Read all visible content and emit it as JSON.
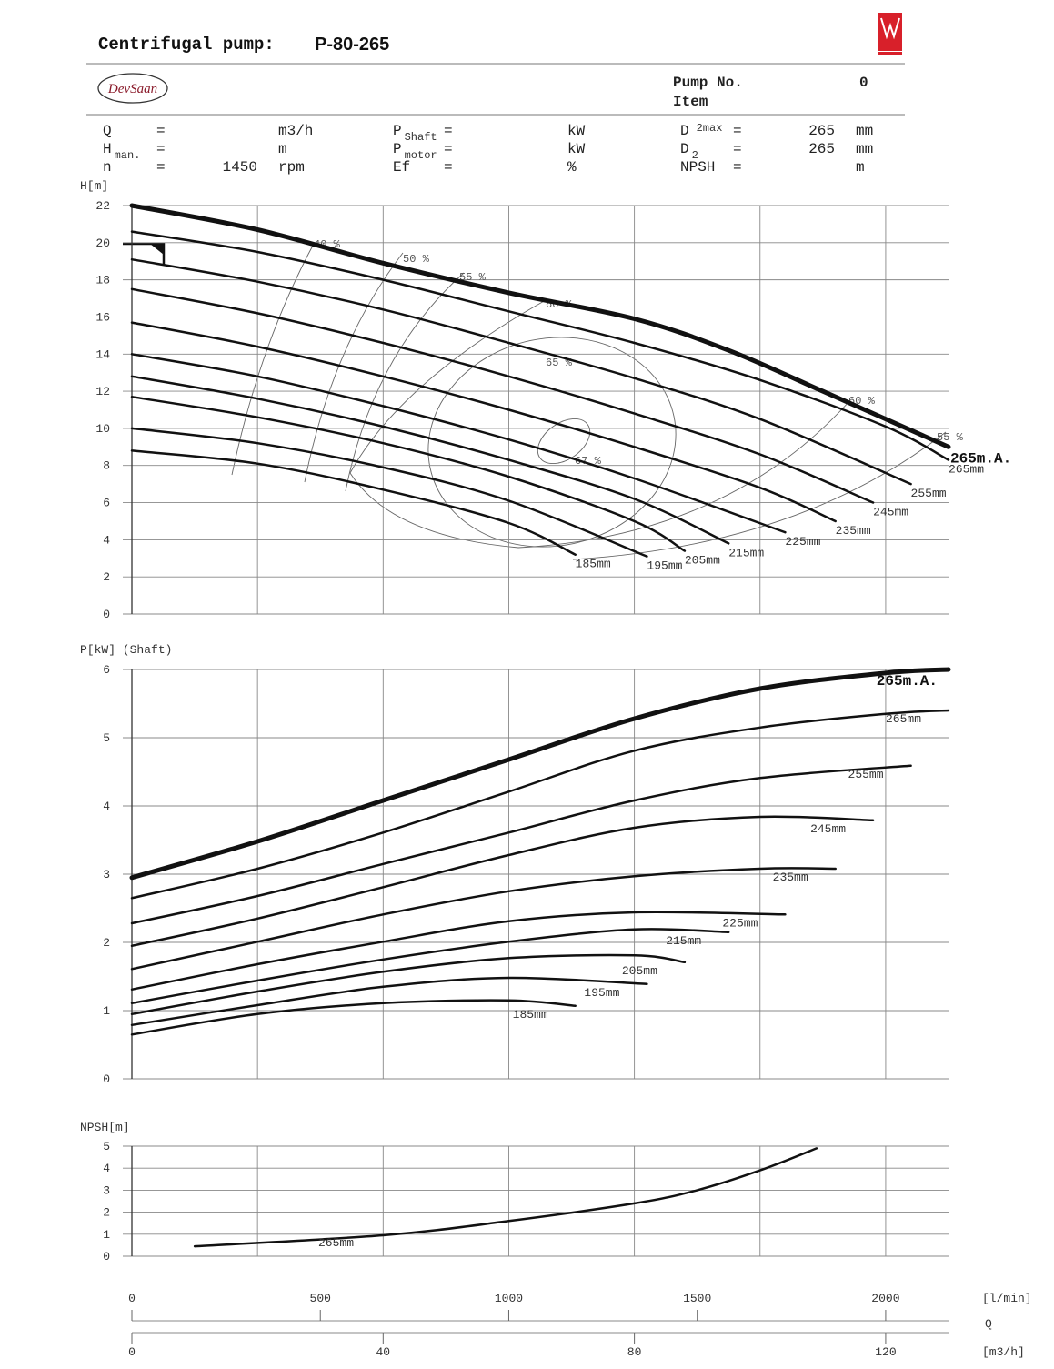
{
  "header": {
    "title": "Centrifugal pump:",
    "model": "P-80-265",
    "logo": "DevSaan",
    "pump_no_label": "Pump No.",
    "pump_no": 0,
    "item_label": "Item",
    "fields": [
      {
        "label": "Q",
        "eq": "=",
        "unit": "m3/h"
      },
      {
        "label": "H",
        "sub": "man.",
        "eq": "=",
        "unit": "m"
      },
      {
        "label": "n",
        "eq": "=",
        "value": 1450,
        "unit": "rpm"
      },
      {
        "label": "P",
        "sub": "Shaft",
        "eq": "=",
        "unit": "kW"
      },
      {
        "label": "P",
        "sub": "motor",
        "eq": "=",
        "unit": "kW"
      },
      {
        "label": "Ef",
        "eq": "=",
        "unit": "%"
      },
      {
        "label": "D",
        "sup": "2max",
        "eq": "=",
        "value": 265,
        "unit": "mm"
      },
      {
        "label": "D",
        "sub": "2",
        "eq": "=",
        "value": 265,
        "unit": "mm"
      },
      {
        "label": "NPSH",
        "eq": "=",
        "unit": "m"
      }
    ]
  },
  "chart_data": [
    {
      "type": "line",
      "ylabel": "H[m]",
      "xlim": [
        0,
        130
      ],
      "xticks": [
        0,
        20,
        40,
        60,
        80,
        100,
        120
      ],
      "ylim": [
        0,
        22
      ],
      "yticks": [
        0,
        2,
        4,
        6,
        8,
        10,
        12,
        14,
        16,
        18,
        20,
        22
      ],
      "grid": true,
      "annotations": [
        "40 %",
        "50 %",
        "55 %",
        "60 %",
        "65 %",
        "67 %",
        "60 %",
        "55 %"
      ],
      "series": [
        {
          "name": "265m.A.",
          "color": "#111111",
          "width": 5,
          "x": [
            0,
            20,
            40,
            60,
            80,
            95,
            110,
            130
          ],
          "values": [
            22,
            20.7,
            18.9,
            17.3,
            15.9,
            14.2,
            12.0,
            9.0
          ]
        },
        {
          "name": "265mm",
          "color": "#111111",
          "width": 2.5,
          "x": [
            0,
            20,
            40,
            60,
            80,
            100,
            120,
            130
          ],
          "values": [
            20.6,
            19.5,
            18.0,
            16.3,
            14.6,
            12.6,
            10.1,
            8.3
          ]
        },
        {
          "name": "255mm",
          "color": "#111111",
          "width": 2.5,
          "x": [
            0,
            20,
            40,
            60,
            80,
            100,
            124
          ],
          "values": [
            19.1,
            17.9,
            16.4,
            14.6,
            12.7,
            10.5,
            7.0
          ]
        },
        {
          "name": "245mm",
          "color": "#111111",
          "width": 2.5,
          "x": [
            0,
            20,
            40,
            60,
            80,
            100,
            118
          ],
          "values": [
            17.5,
            16.2,
            14.6,
            12.8,
            10.8,
            8.6,
            6.0
          ]
        },
        {
          "name": "235mm",
          "color": "#111111",
          "width": 2.5,
          "x": [
            0,
            20,
            40,
            60,
            80,
            100,
            112
          ],
          "values": [
            15.7,
            14.4,
            12.8,
            11.0,
            9.0,
            6.8,
            5.0
          ]
        },
        {
          "name": "225mm",
          "color": "#111111",
          "width": 2.5,
          "x": [
            0,
            20,
            40,
            60,
            80,
            104
          ],
          "values": [
            14.0,
            12.8,
            11.2,
            9.4,
            7.3,
            4.4
          ]
        },
        {
          "name": "215mm",
          "color": "#111111",
          "width": 2.5,
          "x": [
            0,
            20,
            40,
            60,
            80,
            95
          ],
          "values": [
            12.8,
            11.6,
            10.1,
            8.3,
            6.2,
            3.8
          ]
        },
        {
          "name": "205mm",
          "color": "#111111",
          "width": 2.5,
          "x": [
            0,
            20,
            40,
            60,
            80,
            88
          ],
          "values": [
            11.7,
            10.6,
            9.2,
            7.4,
            5.0,
            3.4
          ]
        },
        {
          "name": "195mm",
          "color": "#111111",
          "width": 2.5,
          "x": [
            0,
            20,
            40,
            60,
            82
          ],
          "values": [
            10.0,
            9.2,
            7.9,
            6.1,
            3.1
          ]
        },
        {
          "name": "185mm",
          "color": "#111111",
          "width": 2.5,
          "x": [
            0,
            20,
            40,
            60,
            70.6
          ],
          "values": [
            8.8,
            8.1,
            6.7,
            4.9,
            3.2
          ]
        }
      ]
    },
    {
      "type": "line",
      "ylabel": "P[kW] (Shaft)",
      "xlim": [
        0,
        130
      ],
      "xticks": [
        0,
        20,
        40,
        60,
        80,
        100,
        120
      ],
      "ylim": [
        0,
        6
      ],
      "yticks": [
        0,
        1,
        2,
        3,
        4,
        5,
        6
      ],
      "grid": true,
      "series": [
        {
          "name": "265m.A.",
          "color": "#111111",
          "width": 5,
          "x": [
            0,
            20,
            40,
            60,
            80,
            100,
            120,
            130
          ],
          "values": [
            2.95,
            3.48,
            4.08,
            4.68,
            5.28,
            5.72,
            5.95,
            6.0
          ]
        },
        {
          "name": "265mm",
          "color": "#111111",
          "width": 2.5,
          "x": [
            0,
            20,
            40,
            60,
            80,
            100,
            120,
            130
          ],
          "values": [
            2.65,
            3.08,
            3.61,
            4.21,
            4.81,
            5.15,
            5.35,
            5.4
          ]
        },
        {
          "name": "255mm",
          "color": "#111111",
          "width": 2.5,
          "x": [
            0,
            20,
            40,
            60,
            80,
            100,
            124
          ],
          "values": [
            2.28,
            2.68,
            3.15,
            3.61,
            4.08,
            4.41,
            4.59
          ]
        },
        {
          "name": "245mm",
          "color": "#111111",
          "width": 2.5,
          "x": [
            0,
            20,
            40,
            60,
            80,
            100,
            118
          ],
          "values": [
            1.95,
            2.35,
            2.81,
            3.28,
            3.68,
            3.84,
            3.79
          ]
        },
        {
          "name": "235mm",
          "color": "#111111",
          "width": 2.5,
          "x": [
            0,
            20,
            40,
            60,
            80,
            100,
            112
          ],
          "values": [
            1.61,
            2.01,
            2.41,
            2.75,
            2.97,
            3.08,
            3.08
          ]
        },
        {
          "name": "225mm",
          "color": "#111111",
          "width": 2.5,
          "x": [
            0,
            20,
            40,
            60,
            80,
            104
          ],
          "values": [
            1.31,
            1.68,
            2.01,
            2.31,
            2.44,
            2.41
          ]
        },
        {
          "name": "215mm",
          "color": "#111111",
          "width": 2.5,
          "x": [
            0,
            20,
            40,
            60,
            80,
            95
          ],
          "values": [
            1.11,
            1.44,
            1.75,
            2.01,
            2.19,
            2.15
          ]
        },
        {
          "name": "205mm",
          "color": "#111111",
          "width": 2.5,
          "x": [
            0,
            20,
            40,
            60,
            80,
            88
          ],
          "values": [
            0.95,
            1.28,
            1.57,
            1.77,
            1.81,
            1.71
          ]
        },
        {
          "name": "195mm",
          "color": "#111111",
          "width": 2.5,
          "x": [
            0,
            20,
            40,
            60,
            82
          ],
          "values": [
            0.79,
            1.08,
            1.35,
            1.48,
            1.39
          ]
        },
        {
          "name": "185mm",
          "color": "#111111",
          "width": 2.5,
          "x": [
            0,
            20,
            40,
            60,
            70.6
          ],
          "values": [
            0.65,
            0.95,
            1.11,
            1.15,
            1.07
          ]
        }
      ]
    },
    {
      "type": "line",
      "ylabel": "NPSH[m]",
      "xlim": [
        0,
        130
      ],
      "xticks": [
        0,
        20,
        40,
        60,
        80,
        100,
        120
      ],
      "ylim": [
        0,
        5
      ],
      "yticks": [
        0,
        1,
        2,
        3,
        4,
        5
      ],
      "grid": true,
      "series": [
        {
          "name": "265mm",
          "color": "#111111",
          "width": 2.5,
          "x": [
            10,
            40,
            60,
            80,
            90,
            100,
            109
          ],
          "values": [
            0.45,
            0.95,
            1.6,
            2.4,
            3.0,
            3.9,
            4.9
          ]
        }
      ]
    }
  ],
  "q_axis": {
    "label": "Q",
    "scales": [
      {
        "unit": "[l/min]",
        "lim": [
          0,
          2166.67
        ],
        "ticks": [
          0,
          500,
          1000,
          1500,
          2000
        ]
      },
      {
        "unit": "[m3/h]",
        "lim": [
          0,
          130
        ],
        "ticks": [
          0,
          40,
          80,
          120
        ]
      }
    ]
  }
}
